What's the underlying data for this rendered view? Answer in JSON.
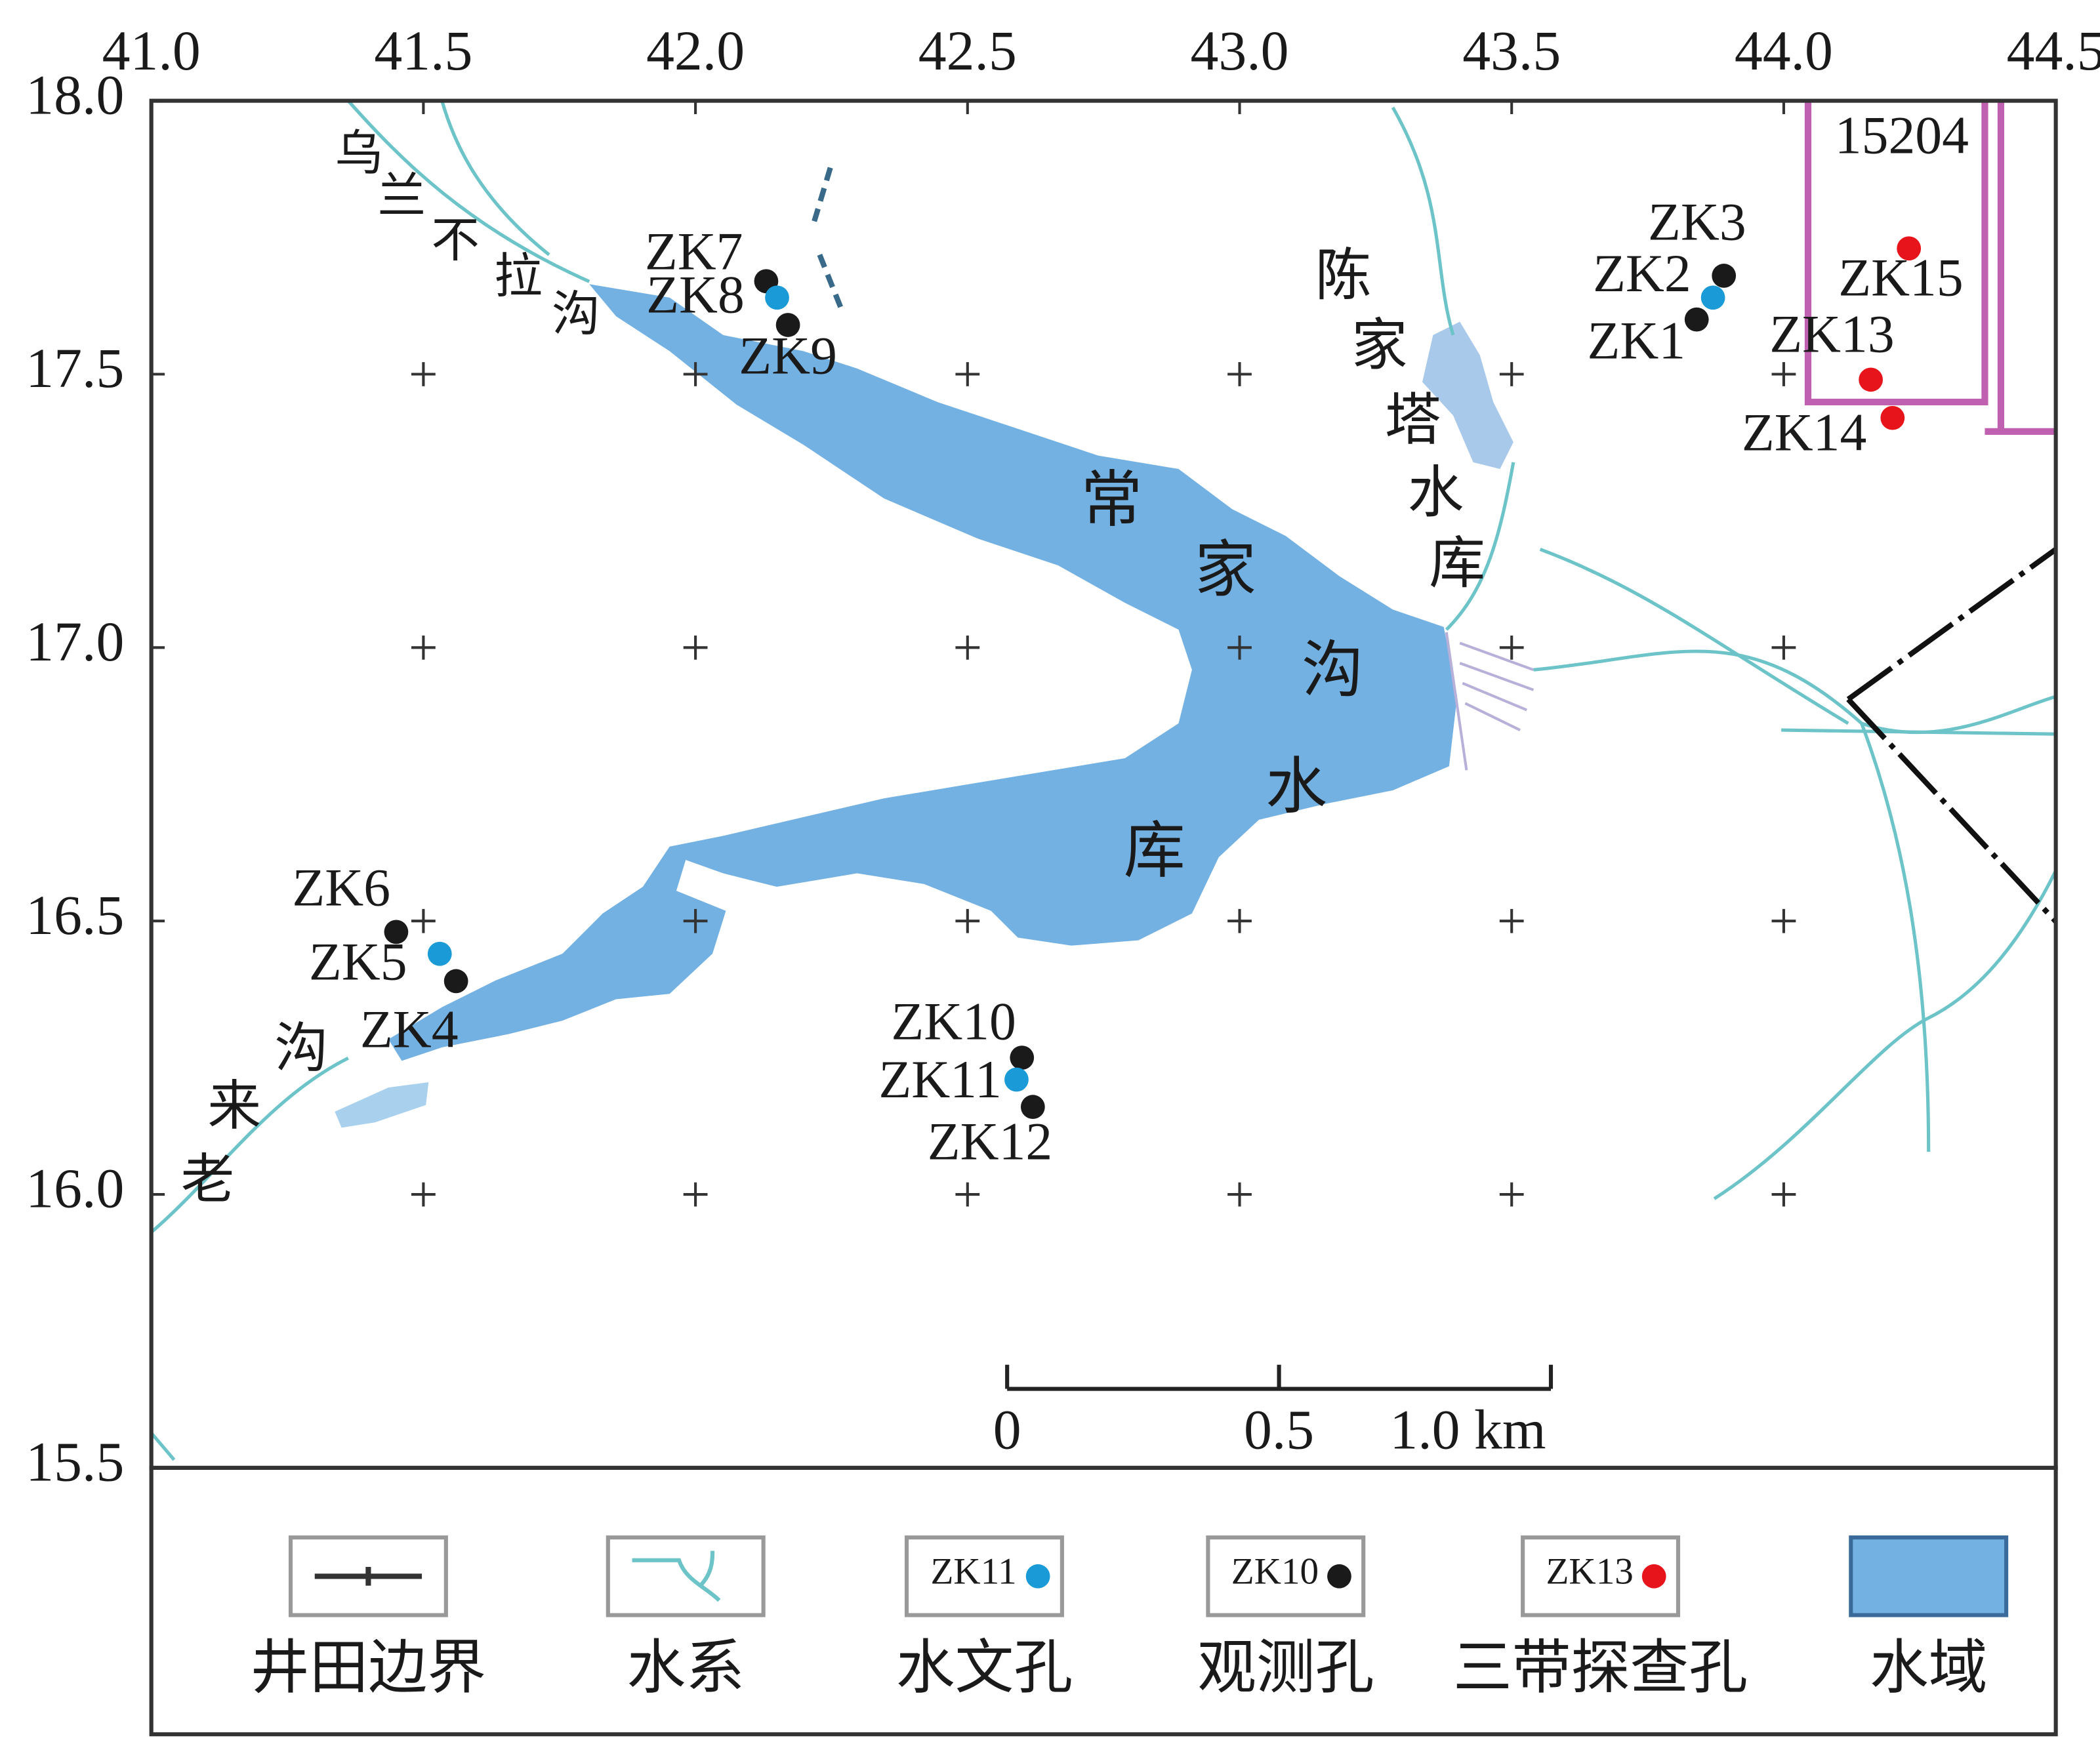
{
  "map": {
    "xlim": [
      41.0,
      44.5
    ],
    "ylim": [
      15.5,
      18.0
    ],
    "xticks": [
      {
        "value": 41.0,
        "label": "41.0"
      },
      {
        "value": 41.5,
        "label": "41.5"
      },
      {
        "value": 42.0,
        "label": "42.0"
      },
      {
        "value": 42.5,
        "label": "42.5"
      },
      {
        "value": 43.0,
        "label": "43.0"
      },
      {
        "value": 43.5,
        "label": "43.5"
      },
      {
        "value": 44.0,
        "label": "44.0"
      },
      {
        "value": 44.5,
        "label": "44.5"
      }
    ],
    "yticks": [
      {
        "value": 15.5,
        "label": "15.5"
      },
      {
        "value": 16.0,
        "label": "16.0"
      },
      {
        "value": 16.5,
        "label": "16.5"
      },
      {
        "value": 17.0,
        "label": "17.0"
      },
      {
        "value": 17.5,
        "label": "17.5"
      },
      {
        "value": 18.0,
        "label": "18.0"
      }
    ],
    "boreholes": [
      {
        "label": "ZK7",
        "color": "#1a1a1a",
        "x": 42.13,
        "y": 17.67
      },
      {
        "label": "ZK8",
        "color": "#1a9ad6",
        "x": 42.15,
        "y": 17.64
      },
      {
        "label": "ZK9",
        "color": "#1a1a1a",
        "x": 42.17,
        "y": 17.59
      },
      {
        "label": "ZK3",
        "color": "#1a1a1a",
        "x": 43.89,
        "y": 17.68
      },
      {
        "label": "ZK2",
        "color": "#1a9ad6",
        "x": 43.87,
        "y": 17.64
      },
      {
        "label": "ZK1",
        "color": "#1a1a1a",
        "x": 43.84,
        "y": 17.6
      },
      {
        "label": "ZK15",
        "color": "#e8141c",
        "x": 44.23,
        "y": 17.73
      },
      {
        "label": "ZK13",
        "color": "#e8141c",
        "x": 44.16,
        "y": 17.49
      },
      {
        "label": "ZK14",
        "color": "#e8141c",
        "x": 44.2,
        "y": 17.42
      },
      {
        "label": "ZK6",
        "color": "#1a1a1a",
        "x": 41.45,
        "y": 16.48
      },
      {
        "label": "ZK5",
        "color": "#1a9ad6",
        "x": 41.53,
        "y": 16.44
      },
      {
        "label": "ZK4",
        "color": "#1a1a1a",
        "x": 41.56,
        "y": 16.39
      },
      {
        "label": "ZK10",
        "color": "#1a1a1a",
        "x": 42.6,
        "y": 16.25
      },
      {
        "label": "ZK11",
        "color": "#1a9ad6",
        "x": 42.59,
        "y": 16.21
      },
      {
        "label": "ZK12",
        "color": "#1a1a1a",
        "x": 42.62,
        "y": 16.16
      }
    ],
    "place_names": [
      "乌兰不拉沟",
      "常家沟水库",
      "陈家塔水库",
      "老来沟"
    ],
    "mine_label": "15204",
    "scale_bar": [
      {
        "value": 0,
        "label": "0"
      },
      {
        "value": 0.5,
        "label": "0.5"
      },
      {
        "value": 1.0,
        "label": "1.0 km"
      }
    ],
    "legend": [
      {
        "label": "井田边界"
      },
      {
        "label": "水系"
      },
      {
        "label": "水文孔",
        "sample": "ZK11",
        "color": "#1a9ad6"
      },
      {
        "label": "观测孔",
        "sample": "ZK10",
        "color": "#1a1a1a"
      },
      {
        "label": "三带探查孔",
        "sample": "ZK13",
        "color": "#e8141c"
      },
      {
        "label": "水域",
        "color": "#74b1e3"
      }
    ]
  }
}
